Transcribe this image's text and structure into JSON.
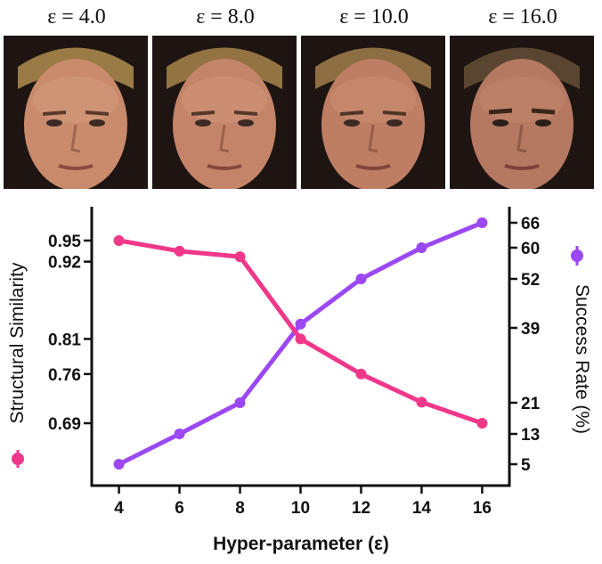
{
  "header": {
    "labels": [
      "ε = 4.0",
      "ε = 8.0",
      "ε = 10.0",
      "ε = 16.0"
    ]
  },
  "colors": {
    "similarity": "#f0388a",
    "success": "#9b48f2",
    "axis": "#111111"
  },
  "chart_data": {
    "type": "line",
    "x": [
      4,
      6,
      8,
      10,
      12,
      14,
      16
    ],
    "xlabel": "Hyper-parameter (ε)",
    "xlim": [
      3.1,
      16.9
    ],
    "series": [
      {
        "name": "Structural Similarity",
        "axis": "left",
        "values": [
          0.95,
          0.935,
          0.927,
          0.81,
          0.76,
          0.72,
          0.69
        ],
        "ticks": [
          0.69,
          0.76,
          0.81,
          0.92,
          0.95
        ],
        "tick_labels": [
          "0.69",
          "0.76",
          "0.81",
          "0.92",
          "0.95"
        ]
      },
      {
        "name": "Success Rate (%)",
        "axis": "right",
        "values": [
          5,
          13,
          21,
          40,
          52,
          60,
          66
        ],
        "ticks": [
          5,
          13,
          21,
          39,
          52,
          60,
          66
        ],
        "tick_labels": [
          "5",
          "13",
          "21",
          "39",
          "52",
          "60",
          "66"
        ]
      }
    ],
    "x_tick_labels": [
      "4",
      "6",
      "8",
      "10",
      "12",
      "14",
      "16"
    ],
    "grid": false,
    "legend": "axis-labels"
  }
}
